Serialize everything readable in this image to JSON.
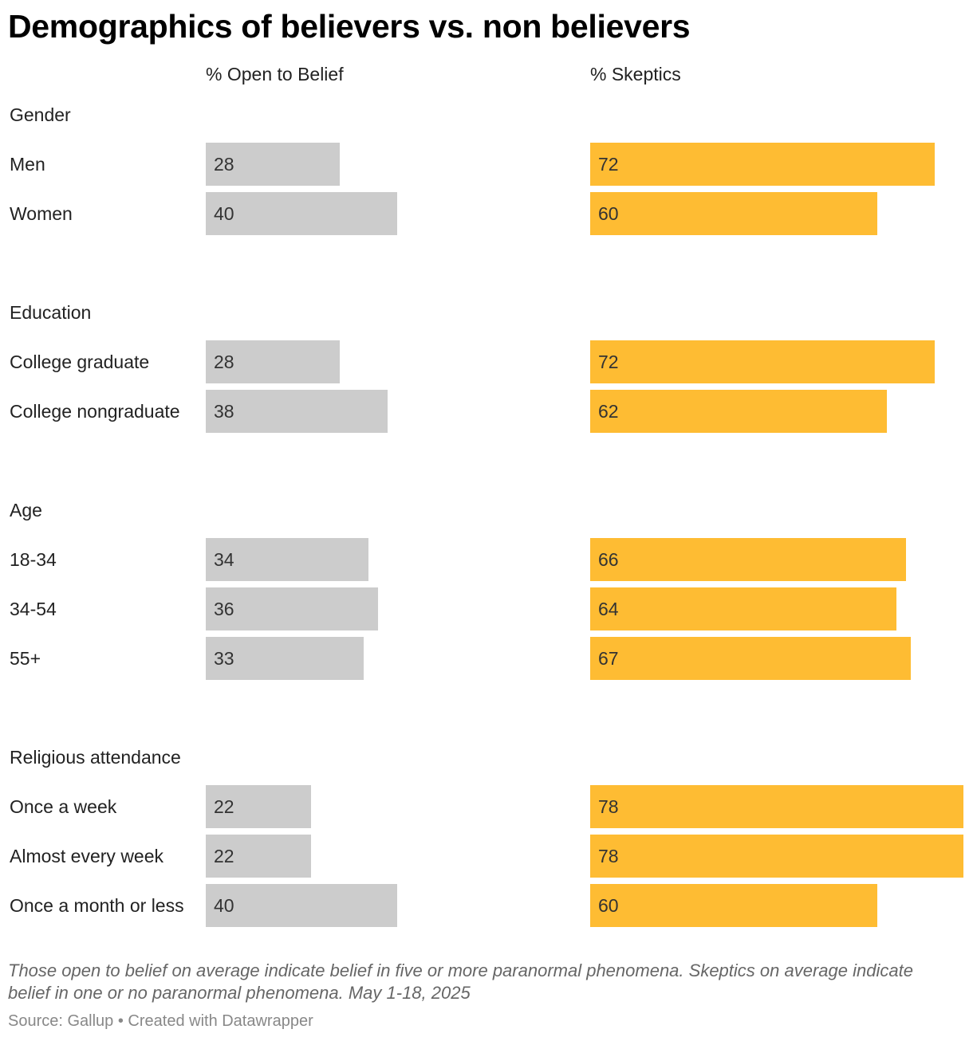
{
  "chart_data": {
    "type": "bar",
    "title": "Demographics of believers vs. non believers",
    "series": [
      {
        "name": "% Open to Belief",
        "color": "#cccccc"
      },
      {
        "name": "% Skeptics",
        "color": "#febc33"
      }
    ],
    "groups": [
      {
        "name": "Gender",
        "rows": [
          {
            "label": "Men",
            "values": [
              28,
              72
            ]
          },
          {
            "label": "Women",
            "values": [
              40,
              60
            ]
          }
        ]
      },
      {
        "name": "Education",
        "rows": [
          {
            "label": "College graduate",
            "values": [
              28,
              72
            ]
          },
          {
            "label": "College nongraduate",
            "values": [
              38,
              62
            ]
          }
        ]
      },
      {
        "name": "Age",
        "rows": [
          {
            "label": "18-34",
            "values": [
              34,
              66
            ]
          },
          {
            "label": "34-54",
            "values": [
              36,
              64
            ]
          },
          {
            "label": "55+",
            "values": [
              33,
              67
            ]
          }
        ]
      },
      {
        "name": "Religious attendance",
        "rows": [
          {
            "label": "Once a week",
            "values": [
              22,
              78
            ]
          },
          {
            "label": "Almost every week",
            "values": [
              22,
              78
            ]
          },
          {
            "label": "Once a month or less",
            "values": [
              40,
              60
            ]
          }
        ]
      }
    ],
    "notes": "Those open to belief on average indicate belief in five or more paranormal phenomena. Skeptics on average indicate belief in one or no paranormal phenomena. May 1-18, 2025",
    "source": "Source: Gallup • Created with Datawrapper"
  }
}
